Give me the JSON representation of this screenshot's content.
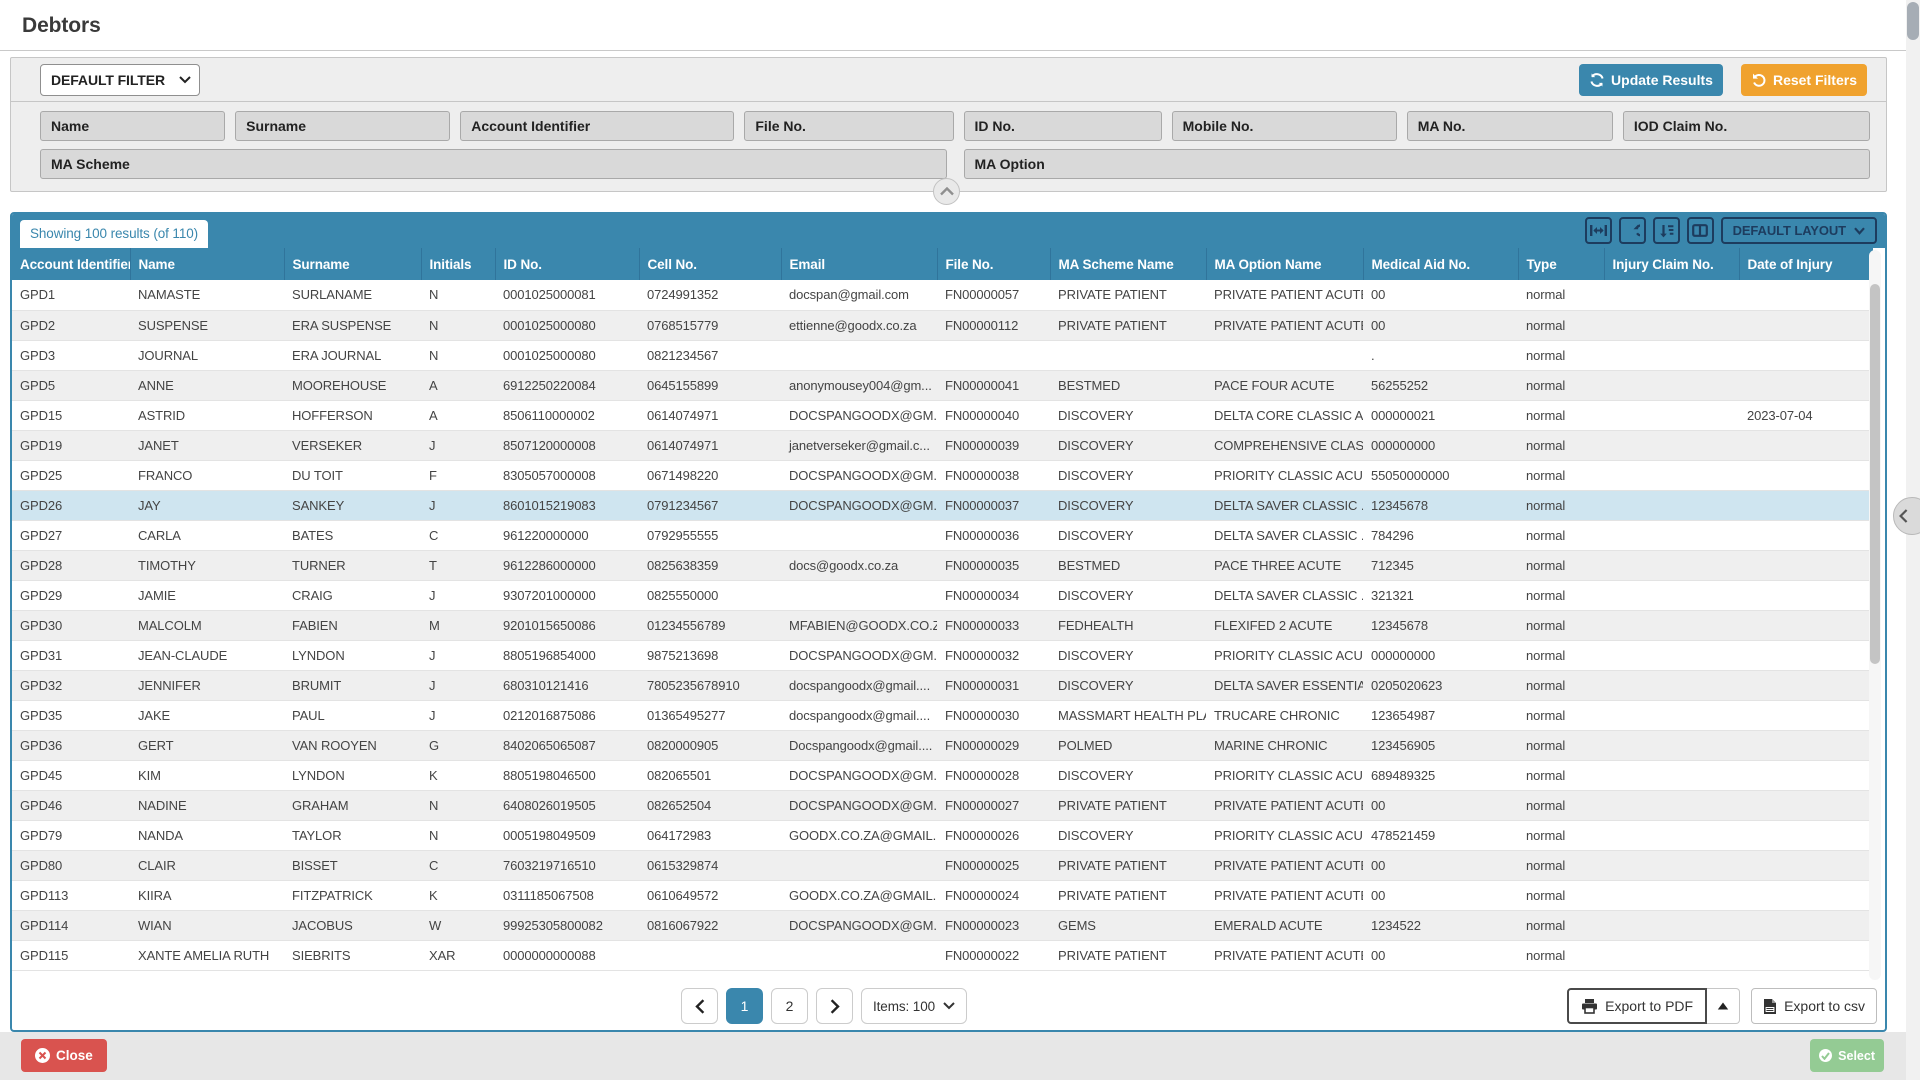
{
  "page": {
    "title": "Debtors"
  },
  "filters": {
    "preset_value": "DEFAULT FILTER",
    "update_label": "Update Results",
    "reset_label": "Reset Filters",
    "fields_row1": [
      "Name",
      "Surname",
      "Account Identifier",
      "File No.",
      "ID No.",
      "Mobile No.",
      "MA No.",
      "IOD Claim No."
    ],
    "fields_row2": [
      "MA Scheme",
      "MA Option"
    ]
  },
  "table": {
    "results_badge": "Showing 100 results (of 110)",
    "layout_select_value": "DEFAULT LAYOUT",
    "columns": [
      "Account Identifier",
      "Name",
      "Surname",
      "Initials",
      "ID No.",
      "Cell No.",
      "Email",
      "File No.",
      "MA Scheme Name",
      "MA Option Name",
      "Medical Aid No.",
      "Type",
      "Injury Claim No.",
      "Date of Injury"
    ],
    "highlighted_row_account": "GPD26",
    "rows": [
      [
        "GPD1",
        "NAMASTE",
        "SURLANAME",
        "N",
        "0001025000081",
        "0724991352",
        "docspan@gmail.com",
        "FN00000057",
        "PRIVATE PATIENT",
        "PRIVATE PATIENT ACUTE",
        "00",
        "normal",
        "",
        ""
      ],
      [
        "GPD2",
        "SUSPENSE",
        "ERA SUSPENSE",
        "N",
        "0001025000080",
        "0768515779",
        "ettienne@goodx.co.za",
        "FN00000112",
        "PRIVATE PATIENT",
        "PRIVATE PATIENT ACUTE",
        "00",
        "normal",
        "",
        ""
      ],
      [
        "GPD3",
        "JOURNAL",
        "ERA JOURNAL",
        "N",
        "0001025000080",
        "0821234567",
        "",
        "",
        "",
        "",
        ".",
        "normal",
        "",
        ""
      ],
      [
        "GPD5",
        "ANNE",
        "MOOREHOUSE",
        "A",
        "6912250220084",
        "0645155899",
        "anonymousey004@gm...",
        "FN00000041",
        "BESTMED",
        "PACE FOUR ACUTE",
        "56255252",
        "normal",
        "",
        ""
      ],
      [
        "GPD15",
        "ASTRID",
        "HOFFERSON",
        "A",
        "8506110000002",
        "0614074971",
        "DOCSPANGOODX@GM...",
        "FN00000040",
        "DISCOVERY",
        "DELTA CORE CLASSIC A...",
        "000000021",
        "normal",
        "",
        "2023-07-04"
      ],
      [
        "GPD19",
        "JANET",
        "VERSEKER",
        "J",
        "8507120000008",
        "0614074971",
        "janetverseker@gmail.c...",
        "FN00000039",
        "DISCOVERY",
        "COMPREHENSIVE CLAS...",
        "000000000",
        "normal",
        "",
        ""
      ],
      [
        "GPD25",
        "FRANCO",
        "DU TOIT",
        "F",
        "8305057000008",
        "0671498220",
        "DOCSPANGOODX@GM...",
        "FN00000038",
        "DISCOVERY",
        "PRIORITY CLASSIC ACUTE",
        "55050000000",
        "normal",
        "",
        ""
      ],
      [
        "GPD26",
        "JAY",
        "SANKEY",
        "J",
        "8601015219083",
        "0791234567",
        "DOCSPANGOODX@GM...",
        "FN00000037",
        "DISCOVERY",
        "DELTA SAVER CLASSIC ...",
        "12345678",
        "normal",
        "",
        ""
      ],
      [
        "GPD27",
        "CARLA",
        "BATES",
        "C",
        "961220000000",
        "0792955555",
        "",
        "FN00000036",
        "DISCOVERY",
        "DELTA SAVER CLASSIC ...",
        "784296",
        "normal",
        "",
        ""
      ],
      [
        "GPD28",
        "TIMOTHY",
        "TURNER",
        "T",
        "9612286000000",
        "0825638359",
        "docs@goodx.co.za",
        "FN00000035",
        "BESTMED",
        "PACE THREE ACUTE",
        "712345",
        "normal",
        "",
        ""
      ],
      [
        "GPD29",
        "JAMIE",
        "CRAIG",
        "J",
        "9307201000000",
        "0825550000",
        "",
        "FN00000034",
        "DISCOVERY",
        "DELTA SAVER CLASSIC ...",
        "321321",
        "normal",
        "",
        ""
      ],
      [
        "GPD30",
        "MALCOLM",
        "FABIEN",
        "M",
        "9201015650086",
        "01234556789",
        "MFABIEN@GOODX.CO.ZA",
        "FN00000033",
        "FEDHEALTH",
        "FLEXIFED 2 ACUTE",
        "12345678",
        "normal",
        "",
        ""
      ],
      [
        "GPD31",
        "JEAN-CLAUDE",
        "LYNDON",
        "J",
        "8805196854000",
        "9875213698",
        "DOCSPANGOODX@GM...",
        "FN00000032",
        "DISCOVERY",
        "PRIORITY CLASSIC ACUTE",
        "000000000",
        "normal",
        "",
        ""
      ],
      [
        "GPD32",
        "JENNIFER",
        "BRUMIT",
        "J",
        "680310121416",
        "7805235678910",
        "docspangoodx@gmail....",
        "FN00000031",
        "DISCOVERY",
        "DELTA SAVER ESSENTIA...",
        "0205020623",
        "normal",
        "",
        ""
      ],
      [
        "GPD35",
        "JAKE",
        "PAUL",
        "J",
        "0212016875086",
        "01365495277",
        "docspangoodx@gmail....",
        "FN00000030",
        "MASSMART HEALTH PLAN",
        "TRUCARE CHRONIC",
        "123654987",
        "normal",
        "",
        ""
      ],
      [
        "GPD36",
        "GERT",
        "VAN ROOYEN",
        "G",
        "8402065065087",
        "0820000905",
        "Docspangoodx@gmail....",
        "FN00000029",
        "POLMED",
        "MARINE CHRONIC",
        "123456905",
        "normal",
        "",
        ""
      ],
      [
        "GPD45",
        "KIM",
        "LYNDON",
        "K",
        "8805198046500",
        "082065501",
        "DOCSPANGOODX@GM...",
        "FN00000028",
        "DISCOVERY",
        "PRIORITY CLASSIC ACUTE",
        "689489325",
        "normal",
        "",
        ""
      ],
      [
        "GPD46",
        "NADINE",
        "GRAHAM",
        "N",
        "6408026019505",
        "082652504",
        "DOCSPANGOODX@GM...",
        "FN00000027",
        "PRIVATE PATIENT",
        "PRIVATE PATIENT ACUTE",
        "00",
        "normal",
        "",
        ""
      ],
      [
        "GPD79",
        "NANDA",
        "TAYLOR",
        "N",
        "0005198049509",
        "064172983",
        "GOODX.CO.ZA@GMAIL....",
        "FN00000026",
        "DISCOVERY",
        "PRIORITY CLASSIC ACUTE",
        "478521459",
        "normal",
        "",
        ""
      ],
      [
        "GPD80",
        "CLAIR",
        "BISSET",
        "C",
        "7603219716510",
        "0615329874",
        "",
        "FN00000025",
        "PRIVATE PATIENT",
        "PRIVATE PATIENT ACUTE",
        "00",
        "normal",
        "",
        ""
      ],
      [
        "GPD113",
        "KIIRA",
        "FITZPATRICK",
        "K",
        "0311185067508",
        "0610649572",
        "GOODX.CO.ZA@GMAIL....",
        "FN00000024",
        "PRIVATE PATIENT",
        "PRIVATE PATIENT ACUTE",
        "00",
        "normal",
        "",
        ""
      ],
      [
        "GPD114",
        "WIAN",
        "JACOBUS",
        "W",
        "99925305800082",
        "0816067922",
        "DOCSPANGOODX@GM...",
        "FN00000023",
        "GEMS",
        "EMERALD ACUTE",
        "1234522",
        "normal",
        "",
        ""
      ],
      [
        "GPD115",
        "XANTE AMELIA RUTH",
        "SIEBRITS",
        "XAR",
        "0000000000088",
        "",
        "",
        "FN00000022",
        "PRIVATE PATIENT",
        "PRIVATE PATIENT ACUTE",
        "00",
        "normal",
        "",
        ""
      ]
    ]
  },
  "pagination": {
    "pages": [
      "1",
      "2"
    ],
    "active_page": "1",
    "items_label": "Items: 100"
  },
  "export": {
    "pdf_label": "Export to PDF",
    "csv_label": "Export to csv"
  },
  "footer": {
    "close_label": "Close",
    "select_label": "Select"
  },
  "colors": {
    "accent_blue": "#3a87ad",
    "toolbar_navy": "#1d3c5e",
    "reset_orange": "#f0a22e",
    "close_red": "#d9534f",
    "select_green": "#94cb94",
    "row_highlight": "#cfe5f0"
  }
}
